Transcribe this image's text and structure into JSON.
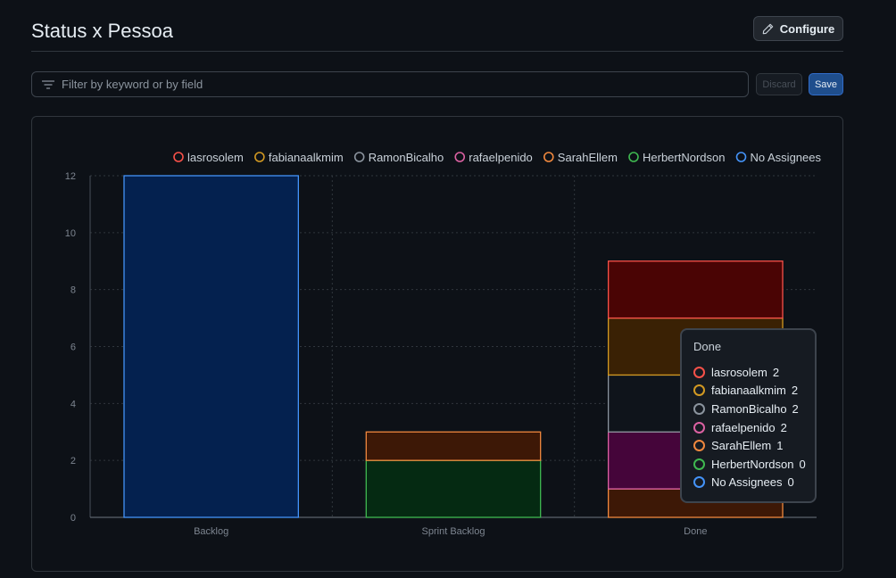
{
  "header": {
    "title": "Status x Pessoa",
    "configure_label": "Configure"
  },
  "filter": {
    "placeholder": "Filter by keyword or by field",
    "value": ""
  },
  "actions": {
    "discard_label": "Discard",
    "save_label": "Save"
  },
  "icons": {
    "configure": "pencil-icon",
    "filter": "filter-icon"
  },
  "chart_data": {
    "type": "bar",
    "stacked": true,
    "categories": [
      "Backlog",
      "Sprint Backlog",
      "Done"
    ],
    "ylim": [
      0,
      12
    ],
    "yticks": [
      0,
      2,
      4,
      6,
      8,
      10,
      12
    ],
    "grid": true,
    "legend_position": "top-center",
    "series": [
      {
        "name": "lasrosolem",
        "color": "#f85149",
        "fill": "#4a0404",
        "values": [
          0,
          0,
          2
        ]
      },
      {
        "name": "fabianaalkmim",
        "color": "#d29922",
        "fill": "#3a2104",
        "values": [
          0,
          0,
          2
        ]
      },
      {
        "name": "RamonBicalho",
        "color": "#8b949e",
        "fill": "#0f141b",
        "values": [
          0,
          0,
          2
        ]
      },
      {
        "name": "rafaelpenido",
        "color": "#db61a2",
        "fill": "#45053a",
        "values": [
          0,
          0,
          2
        ]
      },
      {
        "name": "SarahEllem",
        "color": "#f0883e",
        "fill": "#3d1806",
        "values": [
          0,
          1,
          1
        ]
      },
      {
        "name": "HerbertNordson",
        "color": "#3fb950",
        "fill": "#052a12",
        "values": [
          0,
          2,
          0
        ]
      },
      {
        "name": "No Assignees",
        "color": "#4493f8",
        "fill": "#04214f",
        "values": [
          12,
          0,
          0
        ]
      }
    ],
    "tooltip": {
      "category": "Done",
      "rows": [
        {
          "name": "lasrosolem",
          "value": "2"
        },
        {
          "name": "fabianaalkmim",
          "value": "2"
        },
        {
          "name": "RamonBicalho",
          "value": "2"
        },
        {
          "name": "rafaelpenido",
          "value": "2"
        },
        {
          "name": "SarahEllem",
          "value": "1"
        },
        {
          "name": "HerbertNordson",
          "value": "0"
        },
        {
          "name": "No Assignees",
          "value": "0"
        }
      ]
    }
  }
}
